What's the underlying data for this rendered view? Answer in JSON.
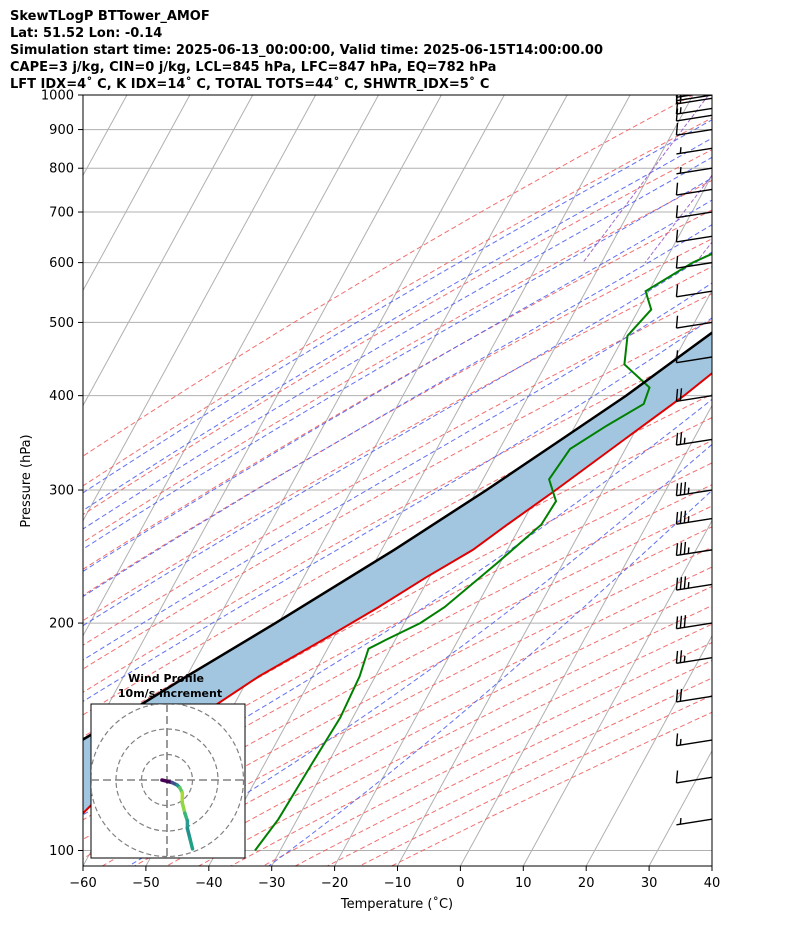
{
  "header": {
    "line1": "SkewTLogP BTTower_AMOF",
    "line2": "Lat: 51.52   Lon: -0.14",
    "line3": "Simulation start time: 2025-06-13_00:00:00, Valid time: 2025-06-15T14:00:00.00",
    "line4": "CAPE=3 j/kg, CIN=0 j/kg, LCL=845 hPa, LFC=847 hPa, EQ=782 hPa",
    "line5": "LFT IDX=4˚ C, K IDX=14˚ C, TOTAL TOTS=44˚ C, SHWTR_IDX=5˚ C"
  },
  "chart_data": {
    "type": "line",
    "subtype": "skew-t log-p",
    "xlabel": "Temperature (˚C)",
    "ylabel": "Pressure (hPa)",
    "xlim": [
      -60,
      40
    ],
    "ylim": [
      1050,
      100
    ],
    "y_scale": "log",
    "x_ticks": [
      -60,
      -50,
      -40,
      -30,
      -20,
      -10,
      0,
      10,
      20,
      30,
      40
    ],
    "x_tick_labels": [
      "−60",
      "−50",
      "−40",
      "−30",
      "−20",
      "−10",
      "0",
      "10",
      "20",
      "30",
      "40"
    ],
    "y_ticks": [
      1000,
      900,
      800,
      700,
      600,
      500,
      400,
      300,
      200,
      100
    ],
    "grid": true,
    "colors": {
      "temperature": "#e00000",
      "dewpoint": "#008000",
      "parcel": "#000000",
      "cape_fill": "#a3c6e0",
      "dry_adiabat": "#f06060",
      "moist_adiabat": "#5060f0",
      "mixing_ratio": "#9050c0",
      "isotherm": "#b0b0b0"
    },
    "series": [
      {
        "key": "temperature",
        "points": [
          [
            1010,
            22.3
          ],
          [
            975,
            18.5
          ],
          [
            940,
            15.8
          ],
          [
            900,
            14.0
          ],
          [
            850,
            13.3
          ],
          [
            800,
            12.3
          ],
          [
            750,
            11.8
          ],
          [
            700,
            11.0
          ],
          [
            650,
            9.8
          ],
          [
            600,
            8.5
          ],
          [
            550,
            6.5
          ],
          [
            500,
            3.5
          ],
          [
            450,
            -1.0
          ],
          [
            400,
            -5.3
          ],
          [
            350,
            -11.0
          ],
          [
            300,
            -17.5
          ],
          [
            270,
            -22.2
          ],
          [
            250,
            -25.5
          ],
          [
            230,
            -30.5
          ],
          [
            210,
            -35.5
          ],
          [
            190,
            -41.5
          ],
          [
            170,
            -48.5
          ],
          [
            150,
            -54.8
          ],
          [
            140,
            -57.8
          ],
          [
            125,
            -62.0
          ],
          [
            110,
            -65.0
          ],
          [
            100,
            -67.5
          ]
        ]
      },
      {
        "key": "dewpoint",
        "points": [
          [
            1010,
            10.0
          ],
          [
            950,
            10.6
          ],
          [
            900,
            11.3
          ],
          [
            860,
            11.8
          ],
          [
            840,
            8.0
          ],
          [
            800,
            -1.5
          ],
          [
            760,
            -1.5
          ],
          [
            700,
            -5.0
          ],
          [
            650,
            -8.5
          ],
          [
            600,
            -15.5
          ],
          [
            550,
            -20.5
          ],
          [
            520,
            -18.0
          ],
          [
            480,
            -19.5
          ],
          [
            440,
            -17.5
          ],
          [
            410,
            -11.5
          ],
          [
            390,
            -11.0
          ],
          [
            365,
            -15.0
          ],
          [
            340,
            -18.8
          ],
          [
            310,
            -19.5
          ],
          [
            290,
            -16.5
          ],
          [
            270,
            -16.8
          ],
          [
            240,
            -20.5
          ],
          [
            210,
            -25.0
          ],
          [
            200,
            -27.5
          ],
          [
            190,
            -31.5
          ],
          [
            185,
            -33.5
          ],
          [
            170,
            -32.5
          ],
          [
            150,
            -32.0
          ],
          [
            130,
            -32.5
          ],
          [
            110,
            -33.0
          ],
          [
            100,
            -34.0
          ]
        ]
      },
      {
        "key": "parcel",
        "points": [
          [
            1010,
            22.3
          ],
          [
            950,
            16.8
          ],
          [
            900,
            13.5
          ],
          [
            845,
            11.5
          ],
          [
            800,
            10.2
          ],
          [
            750,
            8.5
          ],
          [
            700,
            6.8
          ],
          [
            650,
            4.5
          ],
          [
            600,
            1.8
          ],
          [
            550,
            -1.3
          ],
          [
            500,
            -5.0
          ],
          [
            450,
            -9.5
          ],
          [
            400,
            -14.5
          ],
          [
            350,
            -21.0
          ],
          [
            300,
            -28.5
          ],
          [
            250,
            -38.0
          ],
          [
            200,
            -50.5
          ],
          [
            170,
            -60.0
          ],
          [
            150,
            -67.0
          ],
          [
            130,
            -75.5
          ],
          [
            115,
            -83.0
          ],
          [
            100,
            -92.0
          ]
        ]
      }
    ],
    "wind_barbs": [
      {
        "pressure": 1010,
        "speed_kt": 15
      },
      {
        "pressure": 1000,
        "speed_kt": 15
      },
      {
        "pressure": 990,
        "speed_kt": 15
      },
      {
        "pressure": 960,
        "speed_kt": 15
      },
      {
        "pressure": 940,
        "speed_kt": 10
      },
      {
        "pressure": 900,
        "speed_kt": 10
      },
      {
        "pressure": 850,
        "speed_kt": 5
      },
      {
        "pressure": 800,
        "speed_kt": 5
      },
      {
        "pressure": 750,
        "speed_kt": 10
      },
      {
        "pressure": 700,
        "speed_kt": 10
      },
      {
        "pressure": 650,
        "speed_kt": 10
      },
      {
        "pressure": 600,
        "speed_kt": 10
      },
      {
        "pressure": 550,
        "speed_kt": 10
      },
      {
        "pressure": 500,
        "speed_kt": 10
      },
      {
        "pressure": 450,
        "speed_kt": 10
      },
      {
        "pressure": 400,
        "speed_kt": 20
      },
      {
        "pressure": 350,
        "speed_kt": 25
      },
      {
        "pressure": 300,
        "speed_kt": 35
      },
      {
        "pressure": 275,
        "speed_kt": 35
      },
      {
        "pressure": 250,
        "speed_kt": 35
      },
      {
        "pressure": 225,
        "speed_kt": 35
      },
      {
        "pressure": 200,
        "speed_kt": 30
      },
      {
        "pressure": 180,
        "speed_kt": 25
      },
      {
        "pressure": 160,
        "speed_kt": 20
      },
      {
        "pressure": 140,
        "speed_kt": 15
      },
      {
        "pressure": 125,
        "speed_kt": 10
      },
      {
        "pressure": 110,
        "speed_kt": 5
      }
    ],
    "hodograph": {
      "title": "Wind Profile",
      "subtitle": "10m/s increment",
      "rings": [
        10,
        20,
        30
      ],
      "points": [
        [
          -2,
          0
        ],
        [
          2,
          -1
        ],
        [
          4,
          -2
        ],
        [
          5,
          -3
        ],
        [
          6,
          -5
        ],
        [
          6,
          -9
        ],
        [
          7,
          -13
        ],
        [
          8,
          -16
        ],
        [
          8,
          -19
        ],
        [
          9,
          -23
        ],
        [
          10,
          -27
        ]
      ]
    }
  }
}
